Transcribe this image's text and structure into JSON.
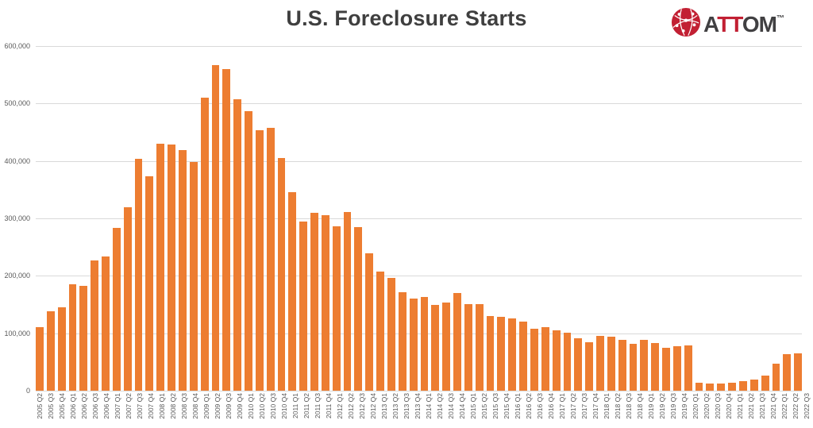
{
  "title": "U.S. Foreclosure Starts",
  "logo": {
    "part1": "A",
    "part2": "TT",
    "part3": "OM",
    "trademark": "™",
    "icon": "attom-globe-icon",
    "red": "#c22033",
    "dark": "#414042"
  },
  "chart_data": {
    "type": "bar",
    "title": "U.S. Foreclosure Starts",
    "xlabel": "",
    "ylabel": "",
    "ylim": [
      0,
      600000
    ],
    "ytick_interval": 100000,
    "ytick_labels": [
      "600,000",
      "500,000",
      "400,000",
      "300,000",
      "200,000",
      "100,000",
      "0"
    ],
    "grid": "horizontal",
    "legend": "none",
    "bar_color": "#ed7d31",
    "gridline_color": "#d9d9d9",
    "axis_text_color": "#595959",
    "title_color": "#3f3f3f",
    "categories": [
      "2005 Q2",
      "2005 Q3",
      "2005 Q4",
      "2006 Q1",
      "2006 Q2",
      "2006 Q3",
      "2006 Q4",
      "2007 Q1",
      "2007 Q2",
      "2007 Q3",
      "2007 Q4",
      "2008 Q1",
      "2008 Q2",
      "2008 Q3",
      "2008 Q4",
      "2009 Q1",
      "2009 Q2",
      "2009 Q3",
      "2009 Q4",
      "2010 Q1",
      "2010 Q2",
      "2010 Q3",
      "2010 Q4",
      "2011 Q1",
      "2011 Q2",
      "2011 Q3",
      "2011 Q4",
      "2012 Q1",
      "2012 Q2",
      "2012 Q3",
      "2012 Q4",
      "2013 Q1",
      "2013 Q2",
      "2013 Q3",
      "2013 Q4",
      "2014 Q1",
      "2014 Q2",
      "2014 Q3",
      "2014 Q4",
      "2015 Q1",
      "2015 Q2",
      "2015 Q3",
      "2015 Q4",
      "2016 Q1",
      "2016 Q2",
      "2016 Q3",
      "2016 Q4",
      "2017 Q1",
      "2017 Q2",
      "2017 Q3",
      "2017 Q4",
      "2018 Q1",
      "2018 Q2",
      "2018 Q3",
      "2018 Q4",
      "2019 Q1",
      "2019 Q2",
      "2019 Q3",
      "2019 Q4",
      "2020 Q1",
      "2020 Q2",
      "2020 Q3",
      "2020 Q4",
      "2021 Q1",
      "2021 Q2",
      "2021 Q3",
      "2021 Q4",
      "2022 Q1",
      "2022 Q2",
      "2022 Q3"
    ],
    "values": [
      111000,
      138000,
      145000,
      186000,
      183000,
      227000,
      234000,
      283000,
      320000,
      404000,
      373000,
      430000,
      429000,
      419000,
      398000,
      510000,
      567000,
      560000,
      508000,
      487000,
      454000,
      458000,
      405000,
      346000,
      294000,
      310000,
      305000,
      286000,
      311000,
      285000,
      239000,
      207000,
      197000,
      172000,
      161000,
      163000,
      149000,
      153000,
      170000,
      151000,
      151000,
      130000,
      129000,
      126000,
      121000,
      108000,
      111000,
      105000,
      101000,
      91000,
      84000,
      95000,
      94000,
      88000,
      81000,
      88000,
      83000,
      75000,
      78000,
      79000,
      14000,
      12000,
      13000,
      14000,
      16000,
      20000,
      27000,
      47000,
      64000,
      65000
    ]
  }
}
